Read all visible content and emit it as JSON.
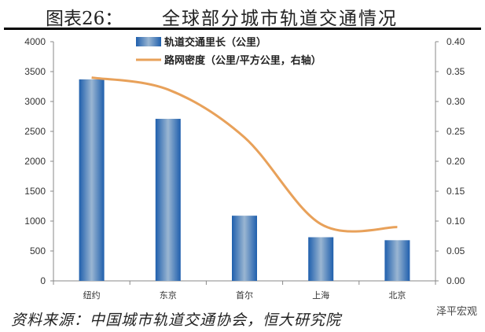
{
  "title": {
    "label": "图表26：",
    "text": "全球部分城市轨道交通情况"
  },
  "source": "资料来源：中国城市轨道交通协会，恒大研究院",
  "watermark": "泽平宏观",
  "chart_data": {
    "type": "bar+line",
    "title": "全球部分城市轨道交通情况",
    "categories": [
      "纽约",
      "东京",
      "首尔",
      "上海",
      "北京"
    ],
    "series": [
      {
        "name": "轨道交通里长（公里）",
        "type": "bar",
        "axis": "left",
        "color": "#2e6db4",
        "values": [
          3370,
          2710,
          1090,
          730,
          680
        ]
      },
      {
        "name": "路网密度（公里/平方公里，右轴）",
        "type": "line",
        "axis": "right",
        "color": "#e8a15a",
        "values": [
          0.34,
          0.32,
          0.24,
          0.095,
          0.09
        ]
      }
    ],
    "y_left": {
      "lim": [
        0,
        4000
      ],
      "ticks": [
        "0",
        "500",
        "1000",
        "1500",
        "2000",
        "2500",
        "3000",
        "3500",
        "4000"
      ]
    },
    "y_right": {
      "lim": [
        0,
        0.4
      ],
      "ticks": [
        "0.00",
        "0.05",
        "0.10",
        "0.15",
        "0.20",
        "0.25",
        "0.30",
        "0.35",
        "0.40"
      ]
    },
    "grid": false,
    "legend_position": "top-center"
  }
}
